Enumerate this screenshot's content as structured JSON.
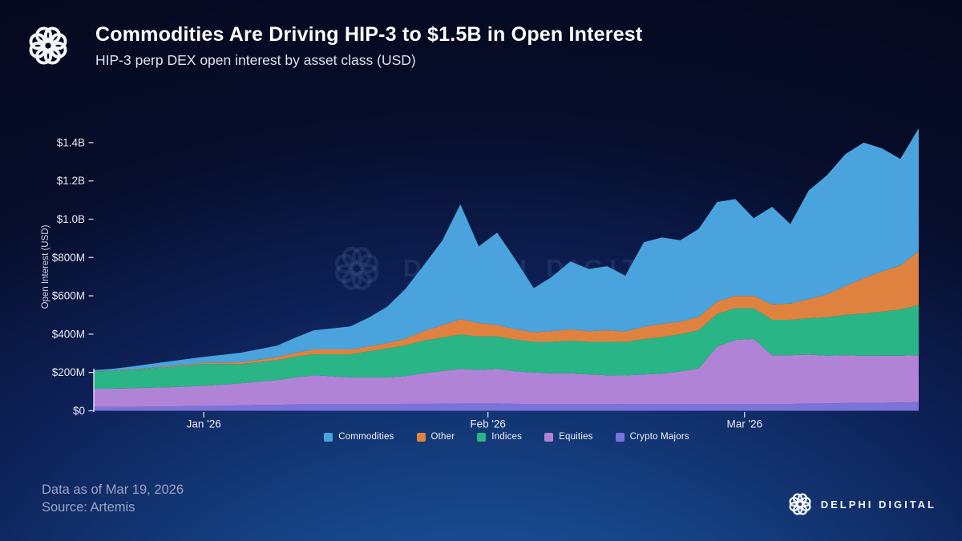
{
  "header": {
    "title": "Commodities Are Driving HIP-3 to $1.5B in Open Interest",
    "subtitle": "HIP-3 perp DEX open interest by asset class (USD)"
  },
  "watermark": {
    "text": "DELPHI DIGITAL"
  },
  "footer": {
    "data_as_of": "Data as of Mar 19, 2026",
    "source": "Source: Artemis",
    "brand": "DELPHI DIGITAL"
  },
  "colors": {
    "commodities": "#4aa3dc",
    "other": "#e0823f",
    "indices": "#2ab587",
    "equities": "#b183d6",
    "crypto_majors": "#7b74d8",
    "background_top": "#05081c",
    "background_bottom": "#1c4f9c",
    "axis_text": "#e8ecf5",
    "footer_text": "#9aa6c2"
  },
  "chart_data": {
    "type": "area",
    "stacked": true,
    "title": "Commodities Are Driving HIP-3 to $1.5B in Open Interest",
    "xlabel": "",
    "ylabel": "Open Interest (USD)",
    "units": "USD millions",
    "ylim": [
      0,
      1500
    ],
    "grid": false,
    "legend_position": "bottom",
    "x": [
      "Dec 20",
      "Dec 22",
      "Dec 24",
      "Dec 26",
      "Dec 28",
      "Dec 30",
      "Jan 1",
      "Jan 3",
      "Jan 5",
      "Jan 7",
      "Jan 9",
      "Jan 11",
      "Jan 13",
      "Jan 15",
      "Jan 17",
      "Jan 19",
      "Jan 21",
      "Jan 23",
      "Jan 25",
      "Jan 27",
      "Jan 29",
      "Jan 31",
      "Feb 2",
      "Feb 4",
      "Feb 6",
      "Feb 8",
      "Feb 10",
      "Feb 12",
      "Feb 14",
      "Feb 16",
      "Feb 18",
      "Feb 20",
      "Feb 22",
      "Feb 24",
      "Feb 26",
      "Feb 28",
      "Mar 2",
      "Mar 4",
      "Mar 6",
      "Mar 8",
      "Mar 10",
      "Mar 12",
      "Mar 14",
      "Mar 15",
      "Mar 17",
      "Mar 19"
    ],
    "series_bottom_to_top": [
      {
        "name": "Crypto Majors",
        "color": "#7b74d8",
        "values": [
          20,
          20,
          21,
          22,
          22,
          24,
          25,
          26,
          28,
          30,
          30,
          34,
          35,
          35,
          35,
          35,
          35,
          36,
          36,
          37,
          38,
          38,
          38,
          36,
          35,
          35,
          35,
          35,
          35,
          34,
          34,
          34,
          35,
          35,
          35,
          35,
          35,
          35,
          35,
          38,
          38,
          40,
          42,
          42,
          43,
          45
        ]
      },
      {
        "name": "Equities",
        "color": "#b183d6",
        "values": [
          95,
          95,
          96,
          98,
          100,
          102,
          105,
          110,
          115,
          122,
          130,
          140,
          150,
          145,
          140,
          140,
          140,
          145,
          160,
          170,
          180,
          175,
          180,
          170,
          165,
          160,
          160,
          155,
          150,
          150,
          155,
          160,
          170,
          185,
          300,
          335,
          340,
          255,
          255,
          255,
          250,
          250,
          245,
          245,
          245,
          245
        ]
      },
      {
        "name": "Indices",
        "color": "#2ab587",
        "values": [
          90,
          92,
          95,
          100,
          105,
          110,
          115,
          108,
          100,
          102,
          105,
          108,
          110,
          115,
          120,
          135,
          150,
          160,
          170,
          175,
          180,
          175,
          170,
          165,
          160,
          165,
          170,
          170,
          175,
          175,
          185,
          190,
          195,
          200,
          170,
          165,
          160,
          185,
          185,
          190,
          200,
          210,
          220,
          230,
          240,
          262
        ]
      },
      {
        "name": "Other",
        "color": "#e0823f",
        "values": [
          2,
          2,
          3,
          3,
          4,
          5,
          6,
          8,
          10,
          12,
          15,
          20,
          25,
          25,
          25,
          26,
          28,
          35,
          50,
          65,
          80,
          70,
          60,
          55,
          50,
          55,
          60,
          55,
          60,
          55,
          65,
          70,
          65,
          70,
          65,
          65,
          65,
          80,
          85,
          100,
          120,
          150,
          185,
          210,
          230,
          281
        ]
      },
      {
        "name": "Commodities",
        "color": "#4aa3dc",
        "values": [
          5,
          10,
          15,
          20,
          25,
          28,
          30,
          40,
          50,
          55,
          60,
          80,
          100,
          110,
          120,
          150,
          190,
          260,
          344,
          440,
          600,
          400,
          482,
          364,
          230,
          285,
          355,
          325,
          335,
          291,
          441,
          451,
          425,
          460,
          520,
          505,
          405,
          510,
          415,
          567,
          622,
          690,
          708,
          643,
          557,
          642
        ]
      }
    ],
    "legend_order": [
      "Commodities",
      "Other",
      "Indices",
      "Equities",
      "Crypto Majors"
    ],
    "y_ticks": [
      {
        "v": 0,
        "label": "$0"
      },
      {
        "v": 200,
        "label": "$200M"
      },
      {
        "v": 400,
        "label": "$400M"
      },
      {
        "v": 600,
        "label": "$600M"
      },
      {
        "v": 800,
        "label": "$800M"
      },
      {
        "v": 1000,
        "label": "$1.0B"
      },
      {
        "v": 1200,
        "label": "$1.2B"
      },
      {
        "v": 1400,
        "label": "$1.4B"
      }
    ],
    "x_ticks": [
      {
        "pos": 6,
        "label": "Jan '26"
      },
      {
        "pos": 21.5,
        "label": "Feb '26"
      },
      {
        "pos": 35.5,
        "label": "Mar '26"
      }
    ]
  }
}
